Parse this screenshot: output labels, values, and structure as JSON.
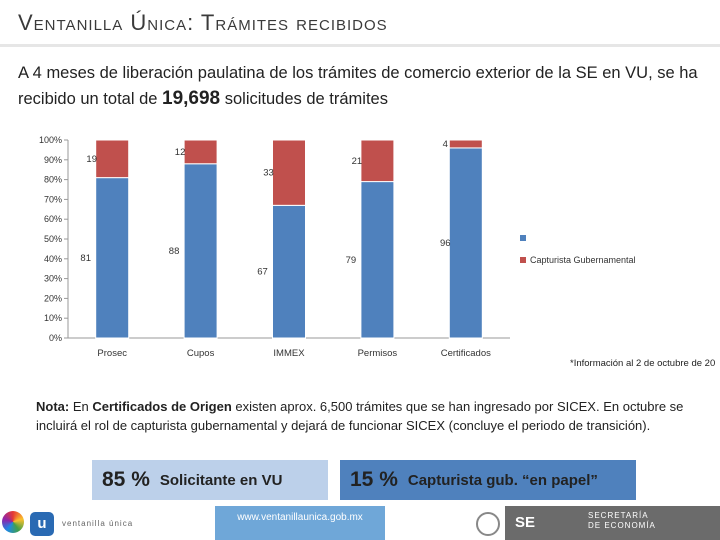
{
  "header": {
    "title": "Ventanilla Única: Trámites recibidos"
  },
  "intro": {
    "text_before": "A 4 meses de liberación paulatina de los trámites de comercio exterior de la SE en VU, se ha recibido un total de ",
    "highlight": "19,698",
    "text_after": " solicitudes de trámites"
  },
  "colors": {
    "series_applicant": "#4f81bd",
    "series_government": "#c0504d"
  },
  "chart_data": {
    "type": "bar",
    "stacked": true,
    "percent": true,
    "categories": [
      "Prosec",
      "Cupos",
      "IMMEX",
      "Permisos",
      "Certificados"
    ],
    "series": [
      {
        "name": "",
        "values": [
          81,
          88,
          67,
          79,
          96
        ]
      },
      {
        "name": "Capturista Gubernamental",
        "values": [
          19,
          12,
          33,
          21,
          4
        ]
      }
    ],
    "y_ticks": [
      "0%",
      "10%",
      "20%",
      "30%",
      "40%",
      "50%",
      "60%",
      "70%",
      "80%",
      "90%",
      "100%"
    ],
    "ylim": [
      0,
      100
    ],
    "legend": "right"
  },
  "footnote": "*Información al 2 de octubre de 20",
  "note": {
    "label": "Nota:",
    "text1": " En ",
    "bold": "Certificados de Origen",
    "text2": " existen aprox. 6,500 trámites que se han ingresado por SICEX. En octubre se incluirá el rol de capturista gubernamental y dejará de funcionar SICEX (concluye el periodo de transición)."
  },
  "summary": [
    {
      "pct": "85 %",
      "label": "Solicitante en VU"
    },
    {
      "pct": "15 %",
      "label": "Capturista gub.  “en papel”"
    }
  ],
  "footer": {
    "url": "www.ventanillaunica.gob.mx",
    "brand": "ventanilla única",
    "logo_letter": "u",
    "se": "SE",
    "secretaria_line1": "SECRETARÍA",
    "secretaria_line2": "DE ECONOMÍA"
  }
}
